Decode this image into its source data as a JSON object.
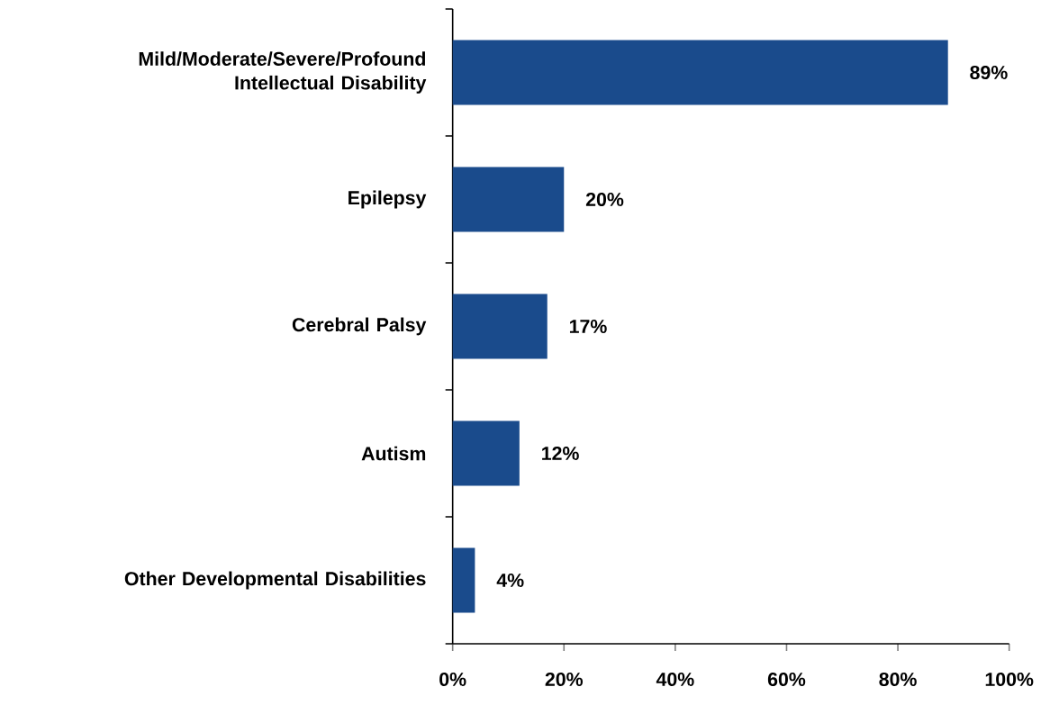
{
  "chart_data": {
    "type": "bar",
    "orientation": "horizontal",
    "categories": [
      "Mild/Moderate/Severe/Profound Intellectual Disability",
      "Epilepsy",
      "Cerebral Palsy",
      "Autism",
      "Other Developmental Disabilities"
    ],
    "values": [
      89,
      20,
      17,
      12,
      4
    ],
    "value_labels": [
      "89%",
      "20%",
      "17%",
      "12%",
      "4%"
    ],
    "color": "#1a4b8c",
    "xlim": [
      0,
      100
    ],
    "xticks": [
      {
        "value": 0,
        "label": "0%"
      },
      {
        "value": 20,
        "label": "20%"
      },
      {
        "value": 40,
        "label": "40%"
      },
      {
        "value": 60,
        "label": "60%"
      },
      {
        "value": 80,
        "label": "80%"
      },
      {
        "value": 100,
        "label": "100%"
      }
    ],
    "grid": false
  }
}
